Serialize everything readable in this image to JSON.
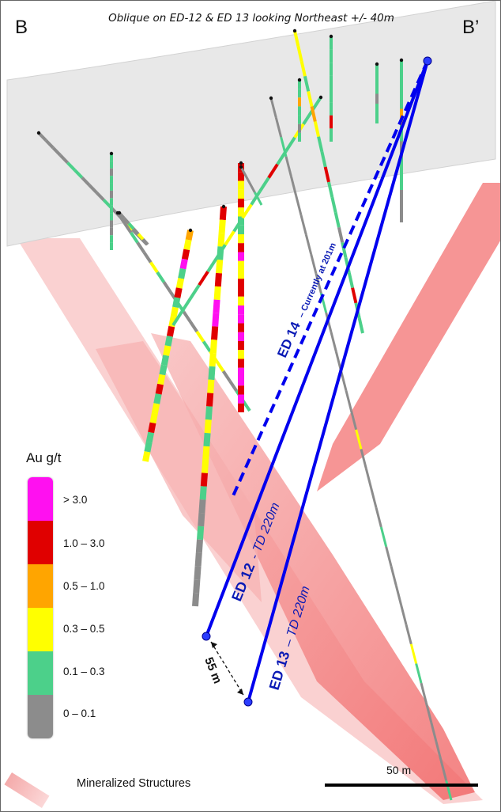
{
  "title": "Oblique on ED-12 & ED 13 looking Northeast +/- 40m",
  "section_labels": {
    "left": "B",
    "right": "B’"
  },
  "legend": {
    "title": "Au g/t",
    "items": [
      {
        "label": "> 3.0",
        "color": "#ff00ff"
      },
      {
        "label": "1.0 – 3.0",
        "color": "#e00000"
      },
      {
        "label": "0.5 – 1.0",
        "color": "#ffa500"
      },
      {
        "label": "0.3 – 0.5",
        "color": "#ffff00"
      },
      {
        "label": "0.1 – 0.3",
        "color": "#4cd08a"
      },
      {
        "label": "0 – 0.1",
        "color": "#8c8c8c"
      }
    ]
  },
  "holes": {
    "ed14": {
      "name": "ED 14",
      "status": "– Currently at 201m"
    },
    "ed12": {
      "name": "ED 12",
      "status": "- TD 220m"
    },
    "ed13": {
      "name": "ED 13",
      "status": "– TD 220m"
    }
  },
  "spacing_label": "55 m",
  "structures_label": "Mineralized Structures",
  "scale_label": "50 m",
  "colors": {
    "planned_hole": "#0000ff",
    "structure": "#f26b6b",
    "topography": "#e6e6e6"
  }
}
